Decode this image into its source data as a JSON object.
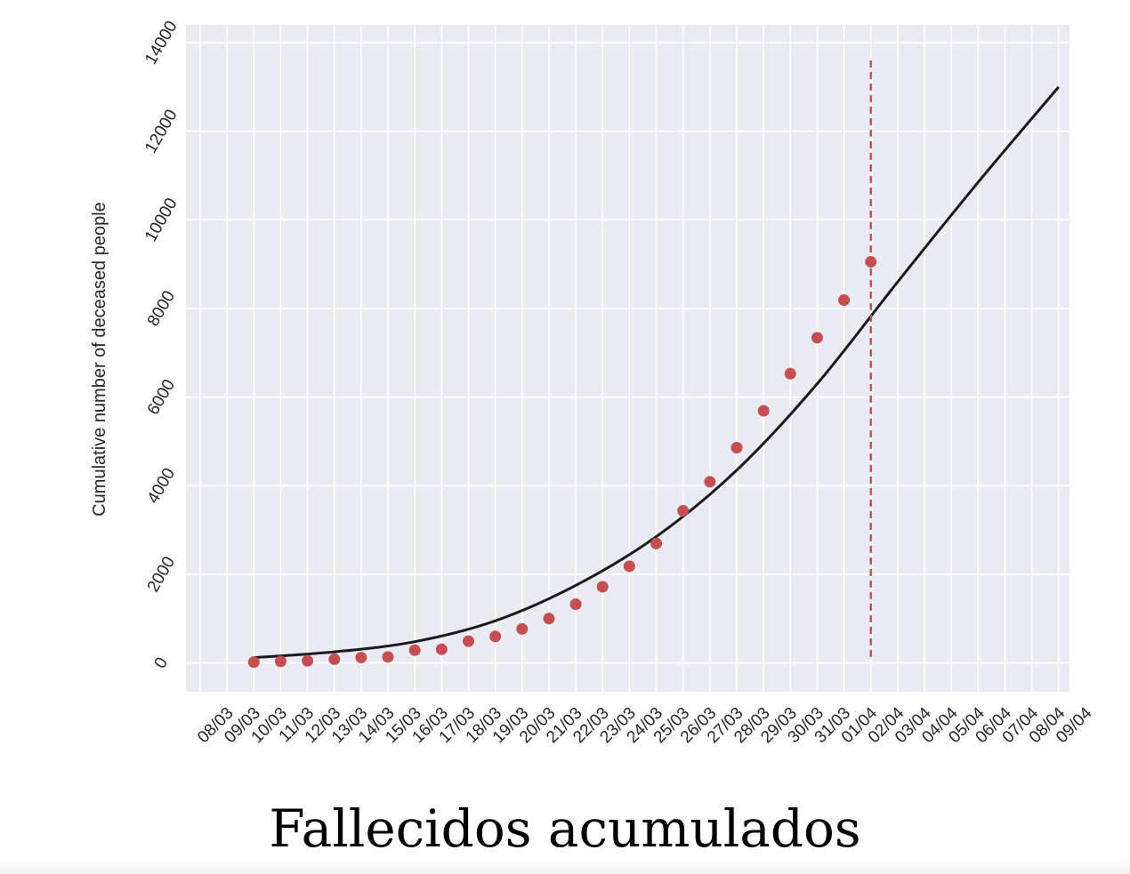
{
  "caption": "Fallecidos acumulados",
  "colors": {
    "plot_background": "#eaeaf2",
    "grid": "#ffffff",
    "observed_points": "#c44e52",
    "fit_line": "#1a1a1a",
    "marker_line": "#c44e52"
  },
  "chart_data": {
    "type": "scatter",
    "title": "",
    "xlabel": "",
    "ylabel": "Cumulative number of deceased people",
    "x_tick_labels": [
      "08/03",
      "09/03",
      "10/03",
      "11/03",
      "12/03",
      "13/03",
      "14/03",
      "15/03",
      "16/03",
      "17/03",
      "18/03",
      "19/03",
      "20/03",
      "21/03",
      "22/03",
      "23/03",
      "24/03",
      "25/03",
      "26/03",
      "27/03",
      "28/03",
      "29/03",
      "30/03",
      "31/03",
      "01/04",
      "02/04",
      "03/04",
      "04/04",
      "05/04",
      "06/04",
      "07/04",
      "08/04",
      "09/04"
    ],
    "y_ticks": [
      0,
      2000,
      4000,
      6000,
      8000,
      10000,
      12000,
      14000
    ],
    "ylim": [
      -650,
      14400
    ],
    "xlim": [
      "07/03",
      "09/04"
    ],
    "grid": true,
    "series": [
      {
        "kind": "points",
        "x": [
          "09/03",
          "10/03",
          "11/03",
          "12/03",
          "13/03",
          "14/03",
          "15/03",
          "16/03",
          "17/03",
          "18/03",
          "19/03",
          "20/03",
          "21/03",
          "22/03",
          "23/03",
          "24/03",
          "25/03",
          "26/03",
          "27/03",
          "28/03",
          "29/03",
          "30/03",
          "31/03",
          "01/04"
        ],
        "y": [
          17,
          35,
          47,
          84,
          121,
          136,
          288,
          309,
          491,
          598,
          767,
          1002,
          1326,
          1720,
          2182,
          2696,
          3434,
          4089,
          4858,
          5690,
          6528,
          7340,
          8189,
          9053
        ]
      },
      {
        "kind": "line",
        "x": [
          "09/03",
          "12/03",
          "15/03",
          "18/03",
          "21/03",
          "24/03",
          "27/03",
          "30/03",
          "02/04",
          "05/04",
          "08/04"
        ],
        "y": [
          120,
          250,
          480,
          950,
          1750,
          2850,
          4350,
          6300,
          8600,
          10850,
          13000
        ]
      }
    ],
    "vline": {
      "x": "01/04",
      "y_range": [
        100,
        13600
      ],
      "style": "dashed"
    }
  }
}
